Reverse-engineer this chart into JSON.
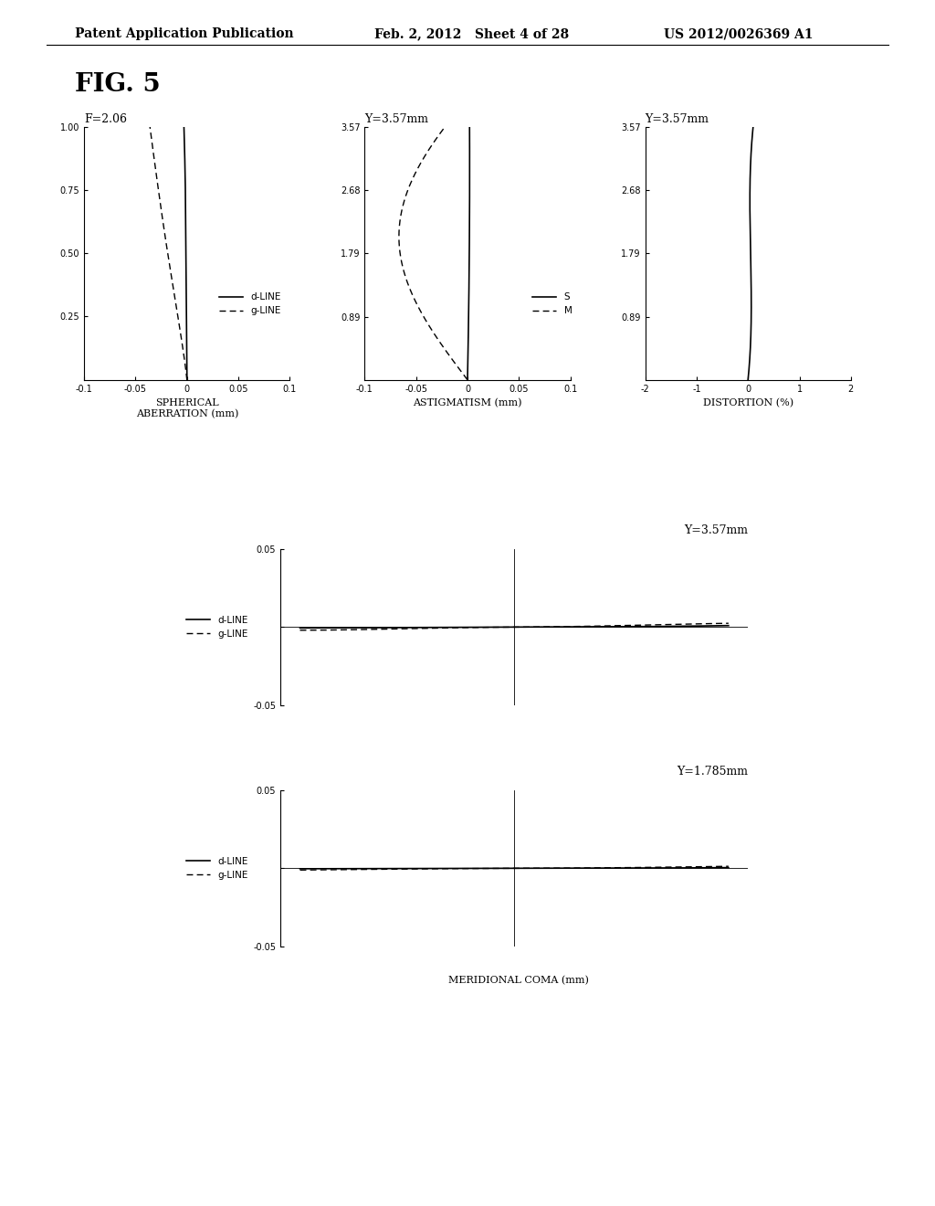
{
  "fig_label": "FIG. 5",
  "header_left": "Patent Application Publication",
  "header_mid": "Feb. 2, 2012   Sheet 4 of 28",
  "header_right": "US 2012/0026369 A1",
  "background_color": "#ffffff",
  "plot1_title": "F=2.06",
  "plot1_xlabel": "SPHERICAL\nABERRATION (mm)",
  "plot1_xlim": [
    -0.1,
    0.1
  ],
  "plot1_xticks": [
    -0.1,
    -0.05,
    0.0,
    0.05,
    0.1
  ],
  "plot1_ylim": [
    0,
    1.0
  ],
  "plot1_yticks": [
    0.25,
    0.5,
    0.75,
    1.0
  ],
  "plot1_legend": [
    "d-LINE",
    "g-LINE"
  ],
  "plot2_title": "Y=3.57mm",
  "plot2_xlabel": "ASTIGMATISM (mm)",
  "plot2_xlim": [
    -0.1,
    0.1
  ],
  "plot2_xticks": [
    -0.1,
    -0.05,
    0.0,
    0.05,
    0.1
  ],
  "plot2_ylim": [
    0,
    3.57
  ],
  "plot2_yticks": [
    0.89,
    1.79,
    2.68,
    3.57
  ],
  "plot2_legend": [
    "S",
    "M"
  ],
  "plot3_title": "Y=3.57mm",
  "plot3_xlabel": "DISTORTION (%)",
  "plot3_xlim": [
    -2,
    2
  ],
  "plot3_xticks": [
    -2,
    -1,
    0,
    1,
    2
  ],
  "plot3_ylim": [
    0,
    3.57
  ],
  "plot3_yticks": [
    0.89,
    1.79,
    2.68,
    3.57
  ],
  "plot4_title": "Y=3.57mm",
  "plot4_xlim": [
    -0.6,
    0.6
  ],
  "plot4_ylim": [
    -0.05,
    0.05
  ],
  "plot4_yticks": [
    -0.05,
    0.0,
    0.05
  ],
  "plot4_legend": [
    "d-LINE",
    "g-LINE"
  ],
  "plot5_title": "Y=1.785mm",
  "plot5_xlabel": "MERIDIONAL COMA (mm)",
  "plot5_xlim": [
    -0.6,
    0.6
  ],
  "plot5_ylim": [
    -0.05,
    0.05
  ],
  "plot5_yticks": [
    -0.05,
    0.0,
    0.05
  ],
  "plot5_legend": [
    "d-LINE",
    "g-LINE"
  ]
}
